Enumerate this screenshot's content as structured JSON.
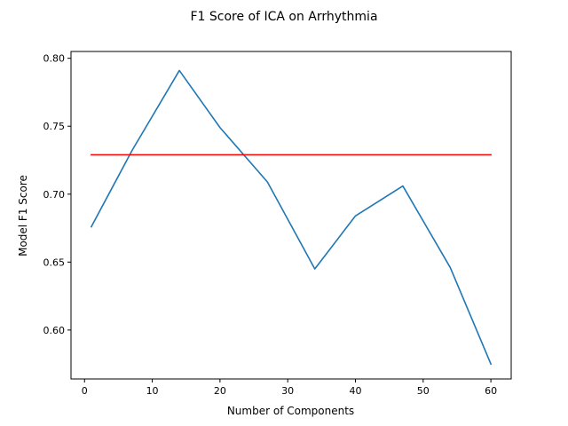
{
  "chart_data": {
    "type": "line",
    "title": "F1 Score of ICA on Arrhythmia",
    "xlabel": "Number of Components",
    "ylabel": "Model F1 Score",
    "xlim": [
      -2.0,
      63.0
    ],
    "ylim": [
      0.564,
      0.805
    ],
    "x_ticks": [
      0,
      10,
      20,
      30,
      40,
      50,
      60
    ],
    "x_tick_labels": [
      "0",
      "10",
      "20",
      "30",
      "40",
      "50",
      "60"
    ],
    "y_ticks": [
      0.6,
      0.65,
      0.7,
      0.75,
      0.8
    ],
    "y_tick_labels": [
      "0.60",
      "0.65",
      "0.70",
      "0.75",
      "0.80"
    ],
    "grid": false,
    "series": [
      {
        "color": "#1f77b4",
        "x": [
          1,
          7,
          14,
          20,
          27,
          34,
          40,
          47,
          54,
          60
        ],
        "y": [
          0.676,
          0.732,
          0.791,
          0.749,
          0.709,
          0.645,
          0.684,
          0.706,
          0.646,
          0.575
        ]
      },
      {
        "color": "#ff0000",
        "x": [
          1,
          60
        ],
        "y": [
          0.729,
          0.729
        ]
      }
    ]
  }
}
